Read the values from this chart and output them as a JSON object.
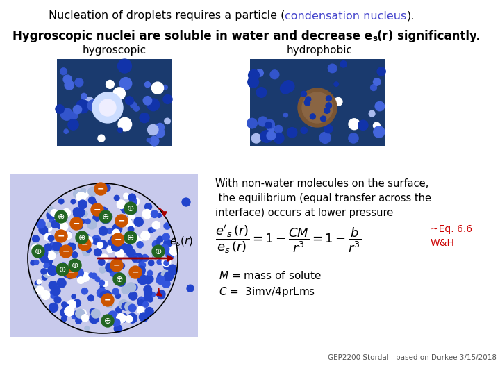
{
  "bg_color": "#ffffff",
  "title_normal": "Nucleation of droplets requires a particle (",
  "title_colored": "condensation nucleus",
  "title_end": ").",
  "condensation_color": "#4444cc",
  "line2_pre": "Hygroscopic nuclei are soluble in water and decrease e",
  "line2_sub": "s",
  "line2_post": "(r) significantly.",
  "label_hygroscopic": "hygroscopic",
  "label_hydrophobic": "hydrophobic",
  "nonwater_text_l1": "With non-water molecules on the surface,",
  "nonwater_text_l2": " the equilibrium (equal transfer across the",
  "nonwater_text_l3": "interface) occurs at lower pressure",
  "eq_ref_l1": "~Eq. 6.6",
  "eq_ref_l2": "W&H",
  "eq_ref_color": "#cc0000",
  "m_text": "M = mass of solute",
  "c_text": "C =  3imv/4prLms",
  "footer": "GEP2200 Stordal - based on Durkee 3/15/2018",
  "lower_box_color": "#c8caec",
  "img_left_color": "#2244aa",
  "img_right_color": "#2244aa",
  "ion_neg_color": "#cc5500",
  "ion_pos_color": "#226622",
  "arrow_color": "#aa0000",
  "line_color": "#990000"
}
